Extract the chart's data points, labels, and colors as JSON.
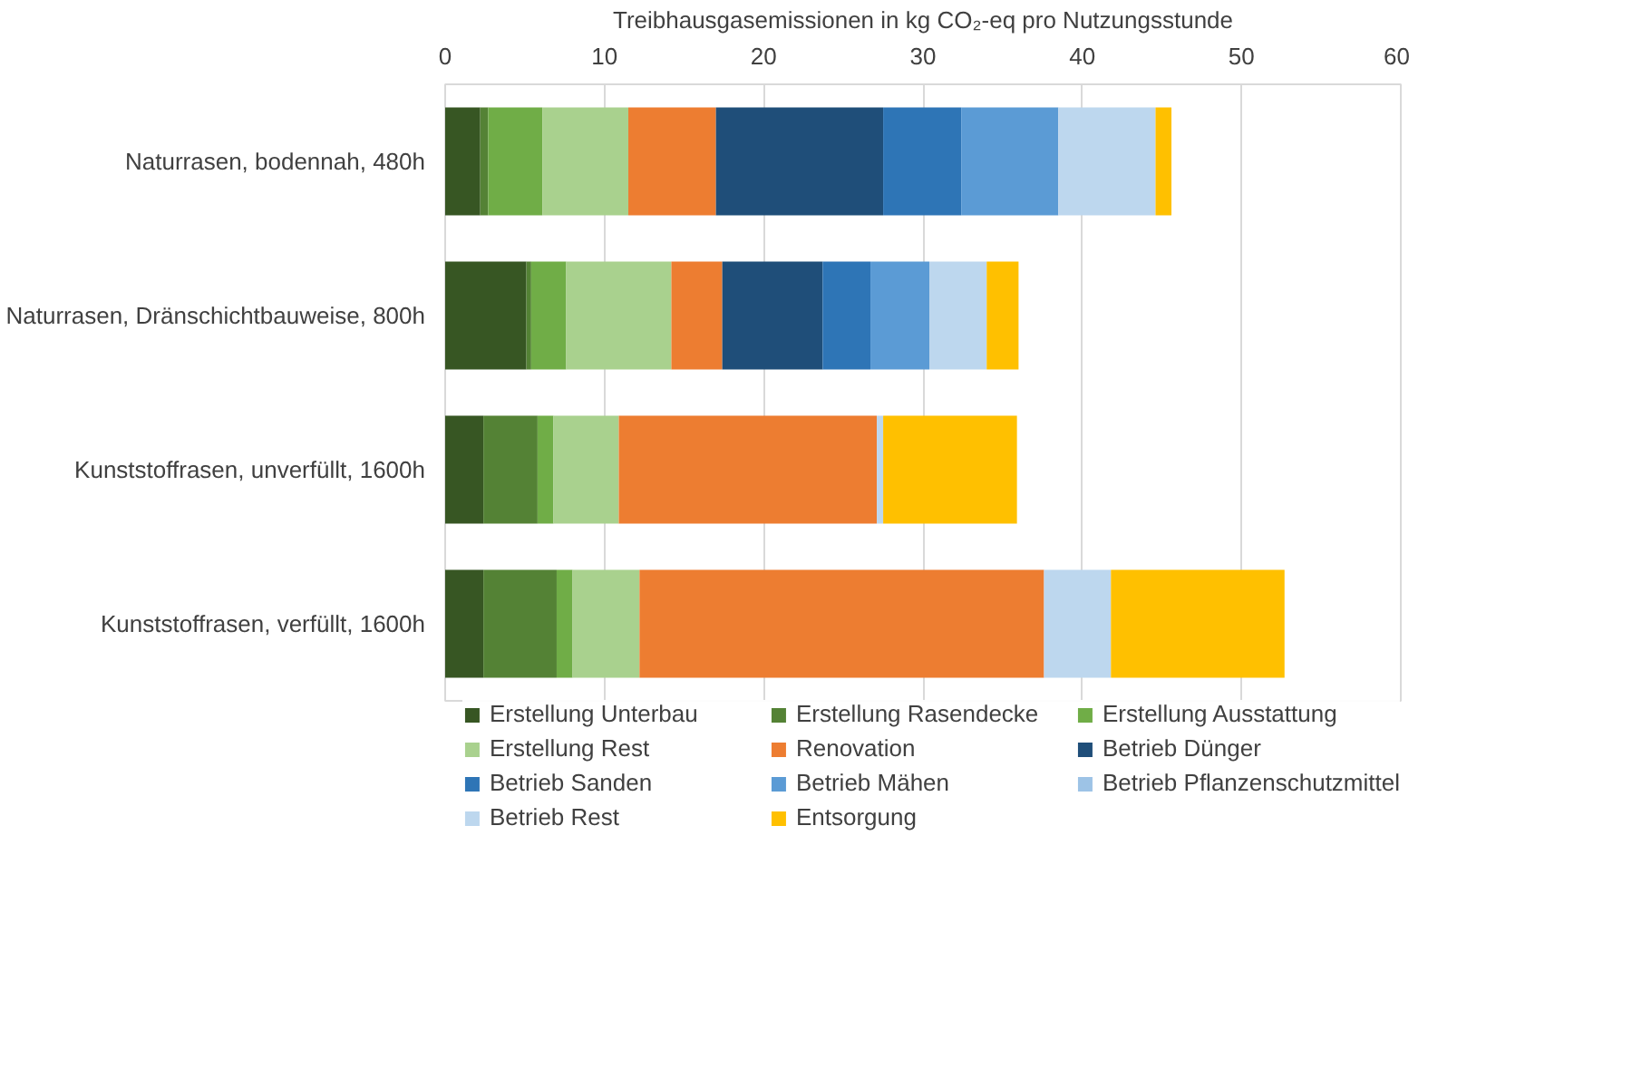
{
  "chart_data": {
    "type": "bar",
    "orientation": "horizontal",
    "stacked": true,
    "xlabel": "Treibhausgasemissionen in kg CO₂-eq pro Nutzungsstunde",
    "categories": [
      "Naturrasen, bodennah, 480h",
      "Naturrasen, Dränschichtbauweise, 800h",
      "Kunststoffrasen, unverfüllt, 1600h",
      "Kunststoffrasen, verfüllt, 1600h"
    ],
    "series": [
      {
        "name": "Erstellung Unterbau",
        "color": "#375623",
        "values": [
          2.2,
          5.1,
          2.4,
          2.4
        ]
      },
      {
        "name": "Erstellung Rasendecke",
        "color": "#548235",
        "values": [
          0.5,
          0.3,
          3.4,
          4.6
        ]
      },
      {
        "name": "Erstellung Ausstattung",
        "color": "#70ad47",
        "values": [
          3.4,
          2.2,
          1.0,
          1.0
        ]
      },
      {
        "name": "Erstellung Rest",
        "color": "#a9d18e",
        "values": [
          5.4,
          6.6,
          4.1,
          4.2
        ]
      },
      {
        "name": "Renovation",
        "color": "#ed7d31",
        "values": [
          5.5,
          3.2,
          16.2,
          25.4
        ]
      },
      {
        "name": "Betrieb Dünger",
        "color": "#1f4e79",
        "values": [
          10.5,
          6.3,
          0,
          0
        ]
      },
      {
        "name": "Betrieb Sanden",
        "color": "#2e75b6",
        "values": [
          4.9,
          3.0,
          0,
          0
        ]
      },
      {
        "name": "Betrieb Mähen",
        "color": "#5b9bd5",
        "values": [
          6.1,
          3.7,
          0,
          0
        ]
      },
      {
        "name": "Betrieb Pflanzenschutzmittel",
        "color": "#9dc3e6",
        "values": [
          0,
          0,
          0,
          0
        ]
      },
      {
        "name": "Betrieb Rest",
        "color": "#bdd7ee",
        "values": [
          6.1,
          3.6,
          0.4,
          4.2
        ]
      },
      {
        "name": "Entsorgung",
        "color": "#ffc000",
        "values": [
          1.0,
          2.0,
          8.4,
          10.9
        ]
      }
    ],
    "xlim": [
      0,
      60
    ],
    "xticks": [
      0,
      10,
      20,
      30,
      40,
      50,
      60
    ],
    "grid": "x",
    "legend": "bottom"
  }
}
